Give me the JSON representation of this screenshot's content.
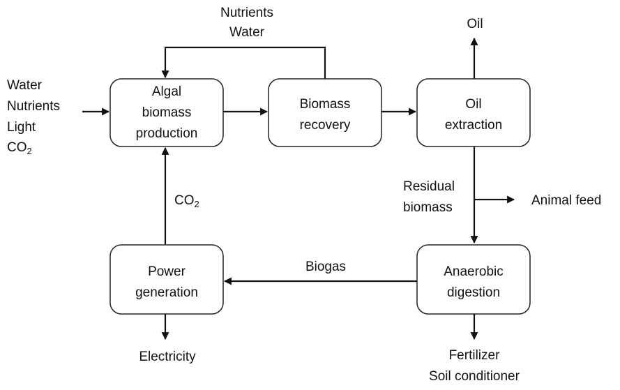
{
  "nodes": [
    {
      "label": [
        "Algal",
        "biomass",
        "production"
      ]
    },
    {
      "label": [
        "Biomass",
        "recovery"
      ]
    },
    {
      "label": [
        "Oil",
        "extraction"
      ]
    },
    {
      "label": [
        "Power",
        "generation"
      ]
    },
    {
      "label": [
        "Anaerobic",
        "digestion"
      ]
    }
  ],
  "inputs": [
    "Water",
    "Nutrients",
    "Light",
    {
      "text": "CO",
      "sub": "2"
    }
  ],
  "recycle": [
    "Nutrients",
    "Water"
  ],
  "oil_output": "Oil",
  "residual": [
    "Residual",
    "biomass"
  ],
  "animal_feed": "Animal feed",
  "biogas": "Biogas",
  "co2_return": {
    "text": "CO",
    "sub": "2"
  },
  "electricity": "Electricity",
  "digestate": [
    "Fertilizer",
    "Soil conditioner"
  ]
}
